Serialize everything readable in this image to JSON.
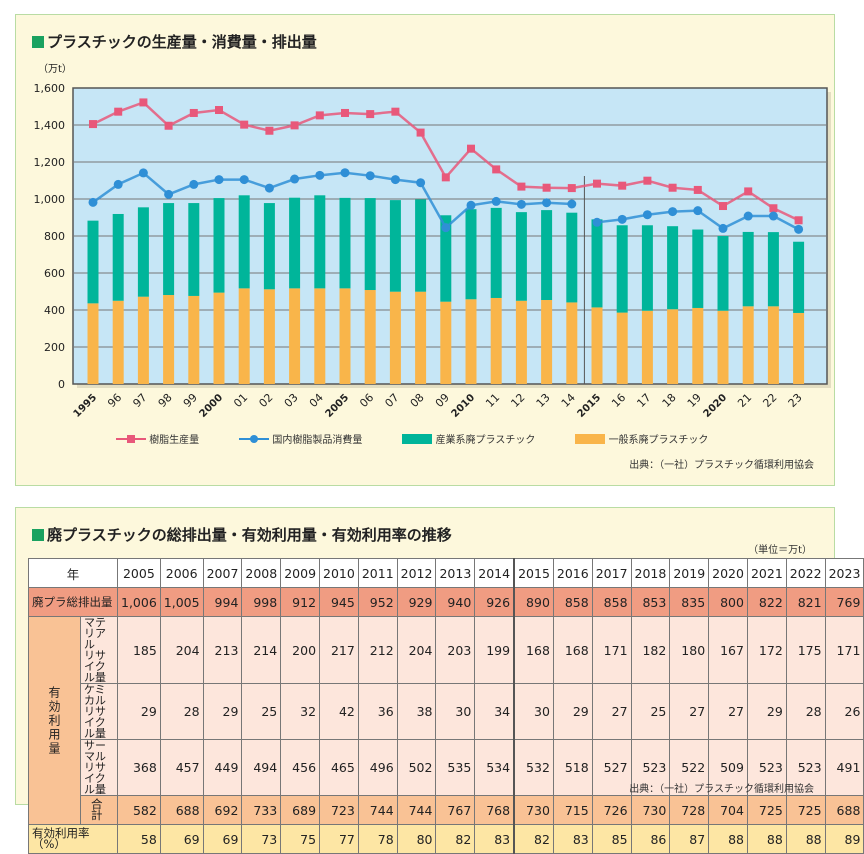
{
  "chart_panel": {
    "title": "プラスチックの生産量・消費量・排出量",
    "unit": "（万t）",
    "source": "出典：（一社）プラスチック循環利用協会"
  },
  "chart_data": {
    "type": "bar",
    "stacked": true,
    "title": "プラスチックの生産量・消費量・排出量",
    "ylabel": "（万t）",
    "ylim": [
      0,
      1600
    ],
    "yticks": [
      "0",
      "200",
      "400",
      "600",
      "800",
      "1,000",
      "1,200",
      "1,400",
      "1,600"
    ],
    "grid": true,
    "legend": "bottom",
    "categories": [
      "1995",
      "96",
      "97",
      "98",
      "99",
      "2000",
      "01",
      "02",
      "03",
      "04",
      "2005",
      "06",
      "07",
      "08",
      "09",
      "2010",
      "11",
      "12",
      "13",
      "14",
      "2015",
      "16",
      "17",
      "18",
      "19",
      "2020",
      "21",
      "22",
      "23"
    ],
    "series": [
      {
        "name": "樹脂生産量",
        "type": "line",
        "color": "#e8587a",
        "values": [
          1405,
          1472,
          1522,
          1396,
          1465,
          1481,
          1402,
          1369,
          1398,
          1452,
          1465,
          1459,
          1472,
          1359,
          1117,
          1272,
          1160,
          1067,
          1061,
          1059,
          1083,
          1072,
          1099,
          1061,
          1049,
          962,
          1041,
          950,
          885
        ]
      },
      {
        "name": "国内樹脂製品消費量",
        "type": "line",
        "color": "#2f8fd6",
        "values": [
          982,
          1079,
          1141,
          1025,
          1079,
          1105,
          1105,
          1059,
          1108,
          1128,
          1142,
          1126,
          1105,
          1088,
          845,
          966,
          987,
          971,
          980,
          973,
          874,
          890,
          915,
          932,
          937,
          841,
          908,
          908,
          836
        ]
      },
      {
        "name": "産業系廃プラスチック",
        "type": "bar",
        "color": "#00b59a",
        "values": [
          447,
          469,
          483,
          497,
          502,
          511,
          503,
          466,
          490,
          503,
          489,
          497,
          495,
          499,
          467,
          487,
          487,
          479,
          486,
          485,
          476,
          472,
          462,
          449,
          424,
          404,
          402,
          401,
          385
        ]
      },
      {
        "name": "一般系廃プラスチック",
        "type": "bar",
        "color": "#f9b54a",
        "values": [
          436,
          450,
          472,
          481,
          476,
          494,
          517,
          512,
          517,
          517,
          517,
          508,
          499,
          499,
          445,
          458,
          465,
          450,
          454,
          441,
          414,
          386,
          396,
          404,
          411,
          396,
          420,
          420,
          384
        ]
      }
    ]
  },
  "table_panel": {
    "title": "廃プラスチックの総排出量・有効利用量・有効利用率の推移",
    "unit": "（単位＝万t）",
    "source": "出典：（一社）プラスチック循環利用協会",
    "year_header": "年",
    "group_label": "有効利用量",
    "years": [
      "2005",
      "2006",
      "2007",
      "2008",
      "2009",
      "2010",
      "2011",
      "2012",
      "2013",
      "2014",
      "2015",
      "2016",
      "2017",
      "2018",
      "2019",
      "2020",
      "2021",
      "2022",
      "2023"
    ],
    "rows": [
      {
        "label": "廃プラ総排出量",
        "values": [
          "1,006",
          "1,005",
          "994",
          "998",
          "912",
          "945",
          "952",
          "929",
          "940",
          "926",
          "890",
          "858",
          "858",
          "853",
          "835",
          "800",
          "822",
          "821",
          "769"
        ]
      },
      {
        "label1": "マテリアル",
        "label2": "リサイクル量",
        "values": [
          "185",
          "204",
          "213",
          "214",
          "200",
          "217",
          "212",
          "204",
          "203",
          "199",
          "168",
          "168",
          "171",
          "182",
          "180",
          "167",
          "172",
          "175",
          "171"
        ]
      },
      {
        "label1": "ケミカル",
        "label2": "リサイクル量",
        "values": [
          "29",
          "28",
          "29",
          "25",
          "32",
          "42",
          "36",
          "38",
          "30",
          "34",
          "30",
          "29",
          "27",
          "25",
          "27",
          "27",
          "29",
          "28",
          "26"
        ]
      },
      {
        "label1": "サーマル",
        "label2": "リサイクル量",
        "values": [
          "368",
          "457",
          "449",
          "494",
          "456",
          "465",
          "496",
          "502",
          "535",
          "534",
          "532",
          "518",
          "527",
          "523",
          "522",
          "509",
          "523",
          "523",
          "491"
        ]
      },
      {
        "label": "合　計",
        "values": [
          "582",
          "688",
          "692",
          "733",
          "689",
          "723",
          "744",
          "744",
          "767",
          "768",
          "730",
          "715",
          "726",
          "730",
          "728",
          "704",
          "725",
          "725",
          "688"
        ]
      },
      {
        "label": "有効利用率（%）",
        "values": [
          "58",
          "69",
          "69",
          "73",
          "75",
          "77",
          "78",
          "80",
          "82",
          "83",
          "82",
          "83",
          "85",
          "86",
          "87",
          "88",
          "88",
          "88",
          "89"
        ]
      }
    ]
  }
}
